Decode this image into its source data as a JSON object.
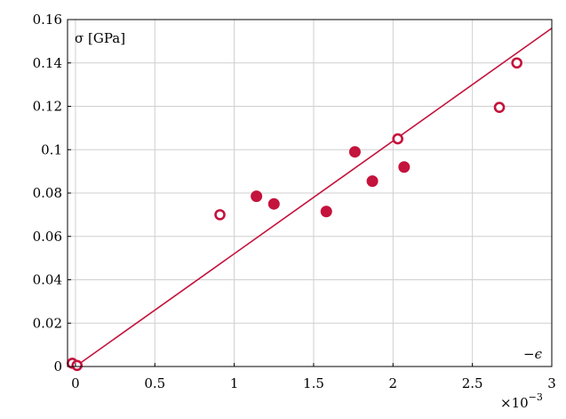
{
  "chart_data": {
    "type": "scatter",
    "title": "",
    "xlabel": "−ϵ",
    "ylabel": "σ [GPa]",
    "x_multiplier": "×10",
    "x_multiplier_exp": "−3",
    "xlim": [
      -0.05,
      3.0
    ],
    "ylim": [
      0,
      0.16
    ],
    "x_ticks": [
      0,
      0.5,
      1,
      1.5,
      2,
      2.5,
      3
    ],
    "x_tick_labels": [
      "0",
      "0.5",
      "1",
      "1.5",
      "2",
      "2.5",
      "3"
    ],
    "y_ticks": [
      0,
      0.02,
      0.04,
      0.06,
      0.08,
      0.1,
      0.12,
      0.14,
      0.16
    ],
    "y_tick_labels": [
      "0",
      "0.02",
      "0.04",
      "0.06",
      "0.08",
      "0.1",
      "0.12",
      "0.14",
      "0.16"
    ],
    "grid": true,
    "series": [
      {
        "marker": "filled-circle",
        "color": "#c4133c",
        "x": [
          1.14,
          1.25,
          1.58,
          1.76,
          1.87,
          2.07
        ],
        "y": [
          0.0785,
          0.075,
          0.0715,
          0.099,
          0.0855,
          0.092
        ]
      },
      {
        "marker": "open-circle",
        "color": "#c4133c",
        "x": [
          -0.02,
          0.01,
          0.91,
          2.03,
          2.67,
          2.78
        ],
        "y": [
          0.0015,
          0.0005,
          0.07,
          0.105,
          0.1195,
          0.14
        ]
      },
      {
        "marker": "line",
        "color": "#c4133c",
        "x": [
          0.0,
          3.0
        ],
        "y": [
          0.0,
          0.156
        ]
      }
    ]
  }
}
